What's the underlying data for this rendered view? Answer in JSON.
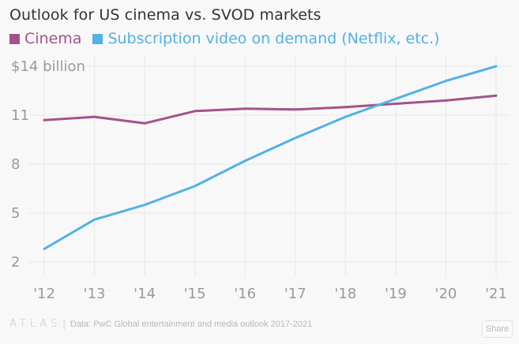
{
  "chart_data": {
    "type": "line",
    "title": "Outlook for US cinema vs. SVOD markets",
    "xlabel": "",
    "ylabel": "",
    "categories": [
      "'12",
      "'13",
      "'14",
      "'15",
      "'16",
      "'17",
      "'18",
      "'19",
      "'20",
      "'21"
    ],
    "series": [
      {
        "name": "Cinema",
        "color": "#a5528a",
        "values": [
          10.7,
          10.9,
          10.5,
          11.25,
          11.4,
          11.35,
          11.5,
          11.7,
          11.9,
          12.2
        ]
      },
      {
        "name": "Subscription video on demand (Netflix, etc.)",
        "color": "#51b2e5",
        "values": [
          2.8,
          4.6,
          5.5,
          6.65,
          8.2,
          9.6,
          10.9,
          12.0,
          13.1,
          14.0
        ]
      }
    ],
    "yticks": [
      2,
      5,
      8,
      11,
      14
    ],
    "ytick_labels": [
      "2",
      "5",
      "8",
      "11",
      "$14 billion"
    ],
    "ylim": [
      2,
      14
    ],
    "grid": true,
    "legend_position": "top-left"
  },
  "footer": {
    "brand": "ATLAS",
    "separator": "|",
    "source": "Data:  PwC Global entertainment and media outlook 2017-2021",
    "share_label": "Share"
  }
}
